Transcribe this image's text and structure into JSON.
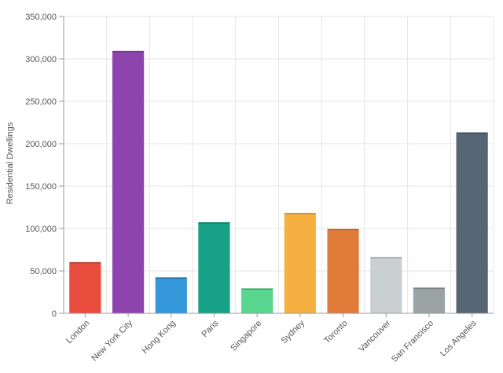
{
  "chart_data": {
    "type": "bar",
    "title": "",
    "xlabel": "",
    "ylabel": "Residential Dwellings",
    "ylim": [
      0,
      350000
    ],
    "yticks": [
      0,
      50000,
      100000,
      150000,
      200000,
      250000,
      300000,
      350000
    ],
    "ytick_labels": [
      "0",
      "50,000",
      "100,000",
      "150,000",
      "200,000",
      "250,000",
      "300,000",
      "350,000"
    ],
    "grid": true,
    "categories": [
      "London",
      "New York City",
      "Hong Kong",
      "Paris",
      "Singapore",
      "Sydney",
      "Toronto",
      "Vancouver",
      "San Francisco",
      "Los Angeles"
    ],
    "values": [
      60000,
      309000,
      42000,
      107000,
      29000,
      118000,
      99000,
      66000,
      30000,
      213000
    ],
    "colors": [
      "#e74c3c",
      "#8e44ad",
      "#3498db",
      "#16a085",
      "#58d68d",
      "#f5b041",
      "#e07b39",
      "#cacfd2",
      "#99a3a4",
      "#566573"
    ]
  }
}
